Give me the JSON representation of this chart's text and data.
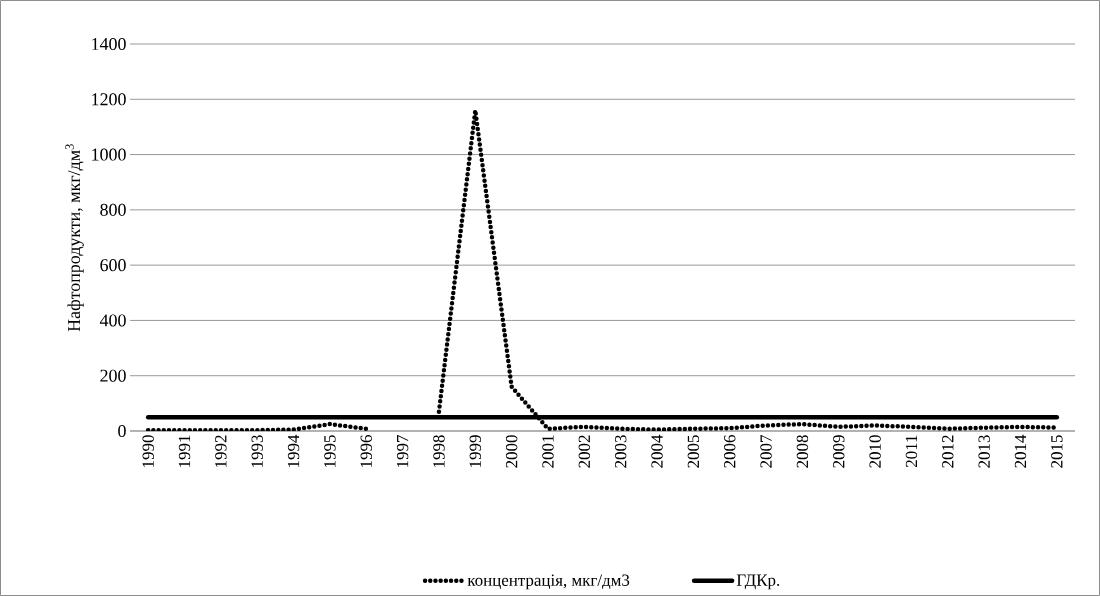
{
  "chart_data": {
    "type": "line",
    "ylabel": "Нафтопродукти, мкг/дм$^{3}$",
    "categories": [
      "1990",
      "1991",
      "1992",
      "1993",
      "1994",
      "1995",
      "1996",
      "1997",
      "1998",
      "1999",
      "2000",
      "2001",
      "2002",
      "2003",
      "2004",
      "2005",
      "2006",
      "2007",
      "2008",
      "2009",
      "2010",
      "2011",
      "2012",
      "2013",
      "2014",
      "2015"
    ],
    "series": [
      {
        "name": "концентрація, мкг/дм3",
        "color": "#000000",
        "line_style": "dotted",
        "values": [
          3,
          3,
          3,
          3,
          5,
          25,
          8,
          null,
          70,
          1160,
          160,
          8,
          15,
          8,
          5,
          8,
          10,
          20,
          25,
          15,
          20,
          15,
          8,
          12,
          15,
          12
        ]
      },
      {
        "name": "ГДКр.",
        "color": "#000000",
        "line_style": "solid",
        "values": [
          50,
          50,
          50,
          50,
          50,
          50,
          50,
          50,
          50,
          50,
          50,
          50,
          50,
          50,
          50,
          50,
          50,
          50,
          50,
          50,
          50,
          50,
          50,
          50,
          50,
          50
        ]
      }
    ],
    "ylim": [
      0,
      1400
    ],
    "yticks": [
      0,
      200,
      400,
      600,
      800,
      1000,
      1200,
      1400
    ],
    "grid": "y",
    "legend": "bottom",
    "marker": "none"
  }
}
